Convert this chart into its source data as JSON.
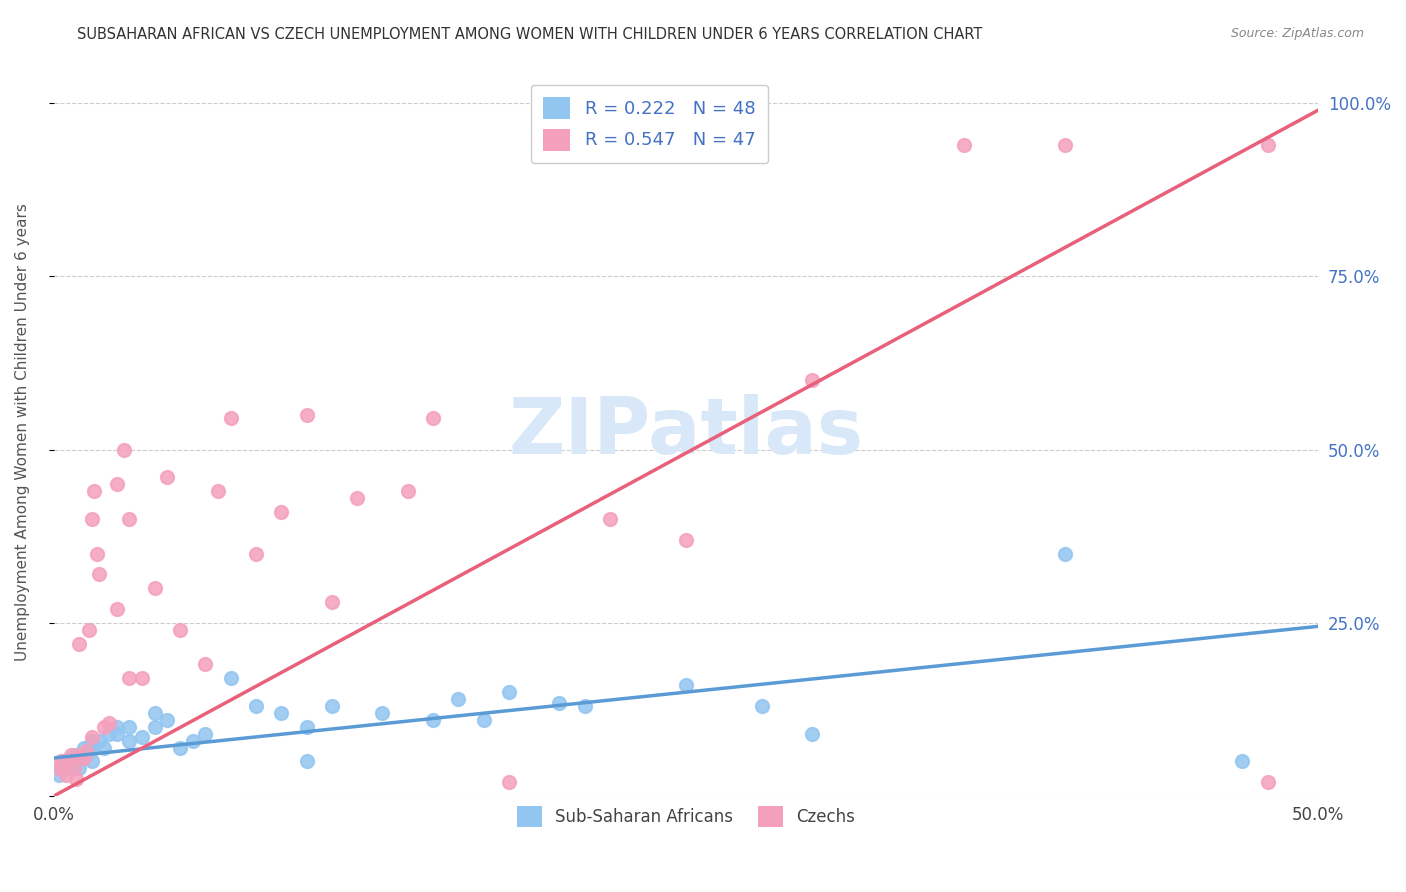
{
  "title": "SUBSAHARAN AFRICAN VS CZECH UNEMPLOYMENT AMONG WOMEN WITH CHILDREN UNDER 6 YEARS CORRELATION CHART",
  "source": "Source: ZipAtlas.com",
  "ylabel": "Unemployment Among Women with Children Under 6 years",
  "xlim": [
    0.0,
    0.5
  ],
  "ylim": [
    0.0,
    1.05
  ],
  "yticks": [
    0.0,
    0.25,
    0.5,
    0.75,
    1.0
  ],
  "ytick_labels_right": [
    "",
    "25.0%",
    "50.0%",
    "75.0%",
    "100.0%"
  ],
  "blue_color": "#92C5F0",
  "pink_color": "#F4A0BC",
  "blue_line_color": "#5B9BD5",
  "pink_line_color": "#E8607A",
  "tick_color": "#4472C4",
  "watermark_color": "#D8E8F8",
  "legend_label_blue": "Sub-Saharan Africans",
  "legend_label_pink": "Czechs",
  "R_blue": 0.222,
  "N_blue": 48,
  "R_pink": 0.547,
  "N_pink": 47,
  "blue_intercept": 0.055,
  "blue_slope": 0.38,
  "pink_intercept": 0.0,
  "pink_slope": 1.98,
  "blue_x": [
    0.002,
    0.003,
    0.004,
    0.005,
    0.006,
    0.007,
    0.008,
    0.009,
    0.01,
    0.01,
    0.012,
    0.013,
    0.014,
    0.015,
    0.015,
    0.016,
    0.018,
    0.02,
    0.022,
    0.025,
    0.025,
    0.03,
    0.03,
    0.035,
    0.04,
    0.04,
    0.045,
    0.05,
    0.055,
    0.06,
    0.07,
    0.08,
    0.09,
    0.1,
    0.1,
    0.11,
    0.13,
    0.15,
    0.16,
    0.17,
    0.18,
    0.2,
    0.21,
    0.25,
    0.28,
    0.3,
    0.4,
    0.47
  ],
  "blue_y": [
    0.03,
    0.04,
    0.05,
    0.04,
    0.05,
    0.04,
    0.06,
    0.05,
    0.06,
    0.04,
    0.07,
    0.06,
    0.07,
    0.05,
    0.08,
    0.07,
    0.08,
    0.07,
    0.09,
    0.1,
    0.09,
    0.08,
    0.1,
    0.085,
    0.1,
    0.12,
    0.11,
    0.07,
    0.08,
    0.09,
    0.17,
    0.13,
    0.12,
    0.1,
    0.05,
    0.13,
    0.12,
    0.11,
    0.14,
    0.11,
    0.15,
    0.135,
    0.13,
    0.16,
    0.13,
    0.09,
    0.35,
    0.05
  ],
  "pink_x": [
    0.002,
    0.003,
    0.004,
    0.005,
    0.006,
    0.007,
    0.008,
    0.009,
    0.01,
    0.01,
    0.012,
    0.013,
    0.014,
    0.015,
    0.015,
    0.016,
    0.017,
    0.018,
    0.02,
    0.022,
    0.025,
    0.025,
    0.028,
    0.03,
    0.03,
    0.035,
    0.04,
    0.045,
    0.05,
    0.06,
    0.065,
    0.07,
    0.08,
    0.09,
    0.1,
    0.11,
    0.12,
    0.14,
    0.15,
    0.18,
    0.22,
    0.25,
    0.3,
    0.36,
    0.4,
    0.48,
    0.48
  ],
  "pink_y": [
    0.04,
    0.05,
    0.04,
    0.03,
    0.05,
    0.06,
    0.04,
    0.025,
    0.06,
    0.22,
    0.055,
    0.065,
    0.24,
    0.085,
    0.4,
    0.44,
    0.35,
    0.32,
    0.1,
    0.105,
    0.27,
    0.45,
    0.5,
    0.4,
    0.17,
    0.17,
    0.3,
    0.46,
    0.24,
    0.19,
    0.44,
    0.545,
    0.35,
    0.41,
    0.55,
    0.28,
    0.43,
    0.44,
    0.545,
    0.02,
    0.4,
    0.37,
    0.6,
    0.94,
    0.94,
    0.94,
    0.02
  ]
}
